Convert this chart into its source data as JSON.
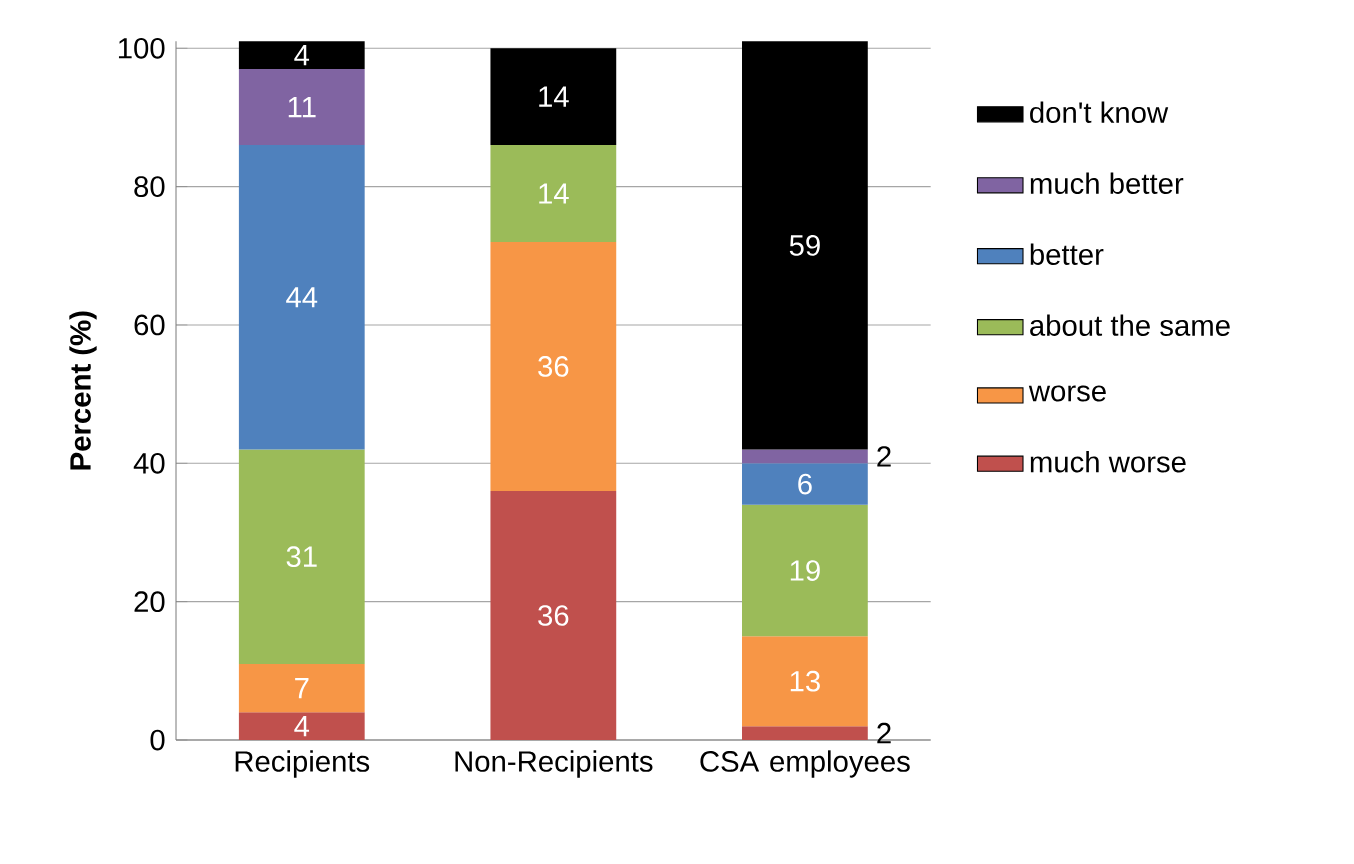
{
  "chart_data": {
    "type": "bar",
    "stacked": true,
    "ylabel": "Percent (%)",
    "categories": [
      "Recipients",
      "Non-Recipients",
      "CSA employees"
    ],
    "series": [
      {
        "name": "much worse",
        "color": "#c0504d",
        "values": [
          4,
          36,
          2
        ]
      },
      {
        "name": "worse",
        "color": "#f79646",
        "values": [
          7,
          36,
          13
        ]
      },
      {
        "name": "about the same",
        "color": "#9bbb59",
        "values": [
          31,
          14,
          19
        ]
      },
      {
        "name": "better",
        "color": "#4f81bd",
        "values": [
          44,
          null,
          6
        ]
      },
      {
        "name": "much better",
        "color": "#8064a2",
        "values": [
          11,
          null,
          2
        ]
      },
      {
        "name": "don't know",
        "color": "#000000",
        "values": [
          4,
          14,
          59
        ]
      }
    ],
    "ylim": [
      0,
      101
    ],
    "yticks": [
      0,
      20,
      40,
      60,
      80,
      100
    ],
    "grid": "y",
    "legend": "right",
    "data_labels": true
  }
}
